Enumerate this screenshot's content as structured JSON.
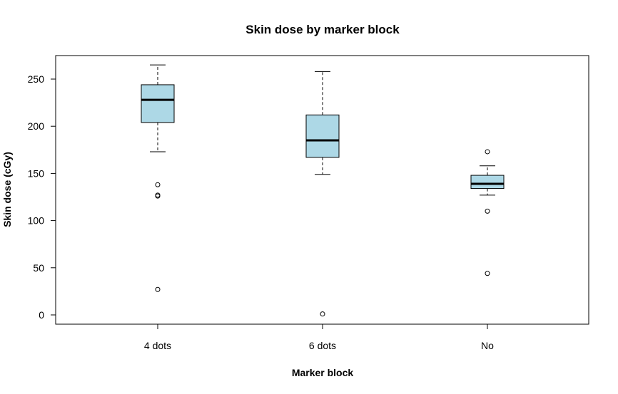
{
  "chart_data": {
    "type": "boxplot",
    "title": "Skin dose by marker block",
    "xlabel": "Marker block",
    "ylabel": "Skin dose (cGy)",
    "categories": [
      "4 dots",
      "6 dots",
      "No"
    ],
    "yticks": [
      0,
      50,
      100,
      150,
      200,
      250
    ],
    "ylim": [
      -10,
      275
    ],
    "grid": false,
    "box_color": "#add8e6",
    "boxes": [
      {
        "category": "4 dots",
        "whisker_low": 173,
        "q1": 204,
        "median": 228,
        "q3": 244,
        "whisker_high": 265,
        "outliers": [
          138,
          127,
          126,
          27
        ]
      },
      {
        "category": "6 dots",
        "whisker_low": 149,
        "q1": 167,
        "median": 185,
        "q3": 212,
        "whisker_high": 258,
        "outliers": [
          1
        ]
      },
      {
        "category": "No",
        "whisker_low": 127,
        "q1": 134,
        "median": 139,
        "q3": 148,
        "whisker_high": 158,
        "outliers": [
          173,
          110,
          44
        ]
      }
    ]
  }
}
